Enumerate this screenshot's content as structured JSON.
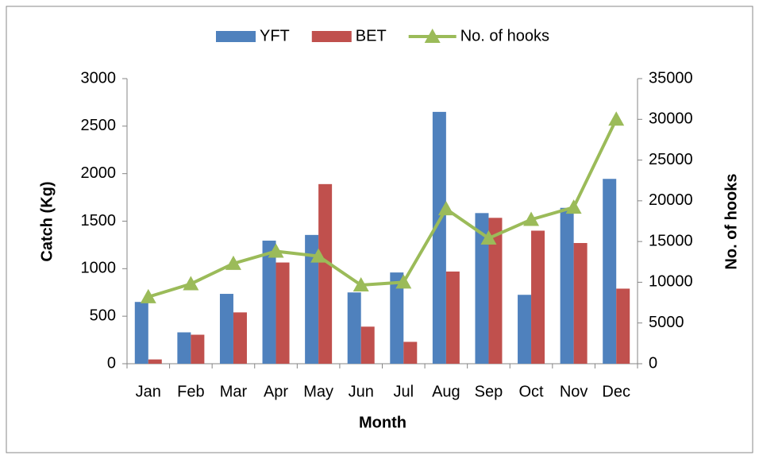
{
  "chart_data": {
    "type": "bar-line",
    "x_label": "Month",
    "y_label": "Catch (Kg)",
    "y2_label": "No. of hooks",
    "categories": [
      "Jan",
      "Feb",
      "Mar",
      "Apr",
      "May",
      "Jun",
      "Jul",
      "Aug",
      "Sep",
      "Oct",
      "Nov",
      "Dec"
    ],
    "series": [
      {
        "name": "YFT",
        "type": "bar",
        "color": "#4f81bd",
        "values": [
          650,
          330,
          735,
          1295,
          1355,
          750,
          960,
          2650,
          1585,
          725,
          1640,
          1945
        ]
      },
      {
        "name": "BET",
        "type": "bar",
        "color": "#c0504d",
        "values": [
          45,
          305,
          540,
          1065,
          1890,
          390,
          230,
          970,
          1535,
          1400,
          1270,
          790
        ]
      },
      {
        "name": "No. of hooks",
        "type": "line",
        "axis": "y2",
        "color": "#9bbb59",
        "values": [
          8200,
          9800,
          12300,
          13800,
          13200,
          9650,
          10000,
          19000,
          15400,
          17700,
          19200,
          30000
        ]
      }
    ],
    "ylim": [
      0,
      3000
    ],
    "yticks": [
      0,
      500,
      1000,
      1500,
      2000,
      2500,
      3000
    ],
    "y2lim": [
      0,
      35000
    ],
    "y2ticks": [
      0,
      5000,
      10000,
      15000,
      20000,
      25000,
      30000,
      35000
    ],
    "legend": "top"
  }
}
